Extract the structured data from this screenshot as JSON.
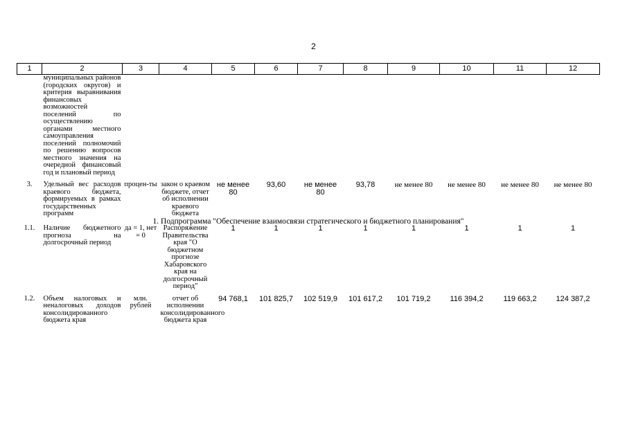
{
  "page_number": "2",
  "columns": [
    "1",
    "2",
    "3",
    "4",
    "5",
    "6",
    "7",
    "8",
    "9",
    "10",
    "11",
    "12"
  ],
  "rows": {
    "continuation": {
      "name": "муниципальных районов (городских округов) и критерия выравнивания финансовых возможностей поселений по осуществлению органами местного самоуправления поселений полномочий по решению вопросов местного значения на очередной финансовый год и плановый период"
    },
    "r3": {
      "num": "3.",
      "name": "Удельный вес расходов краевого бюджета, формируемых в рамках государственных программ",
      "unit": "процен-ты",
      "source": "закон о краевом бюджете, отчет об исполнении краевого бюджета",
      "v5": "не менее 80",
      "v6": "93,60",
      "v7": "не менее 80",
      "v8": "93,78",
      "v9": "не менее 80",
      "v10": "не менее 80",
      "v11": "не менее 80",
      "v12": "не менее 80"
    },
    "subprogram": "1. Подпрограмма \"Обеспечение взаимосвязи стратегического и бюджетного планирования\"",
    "r11": {
      "num": "1.1.",
      "name": "Наличие бюджетного прогноза на долгосрочный период",
      "unit": "да = 1, нет = 0",
      "source": "Распоряжение Правительства края \"О бюджетном прогнозе Хабаровского края на долгосрочный период\"",
      "v5": "1",
      "v6": "1",
      "v7": "1",
      "v8": "1",
      "v9": "1",
      "v10": "1",
      "v11": "1",
      "v12": "1"
    },
    "r12": {
      "num": "1.2.",
      "name": "Объем налоговых и неналоговых доходов консолидированного бюджета края",
      "unit": "млн. рублей",
      "source": "отчет об исполнении консолидированного бюджета края",
      "v5": "94 768,1",
      "v6": "101 825,7",
      "v7": "102 519,9",
      "v8": "101 617,2",
      "v9": "101 719,2",
      "v10": "116 394,2",
      "v11": "119 663,2",
      "v12": "124 387,2"
    }
  }
}
